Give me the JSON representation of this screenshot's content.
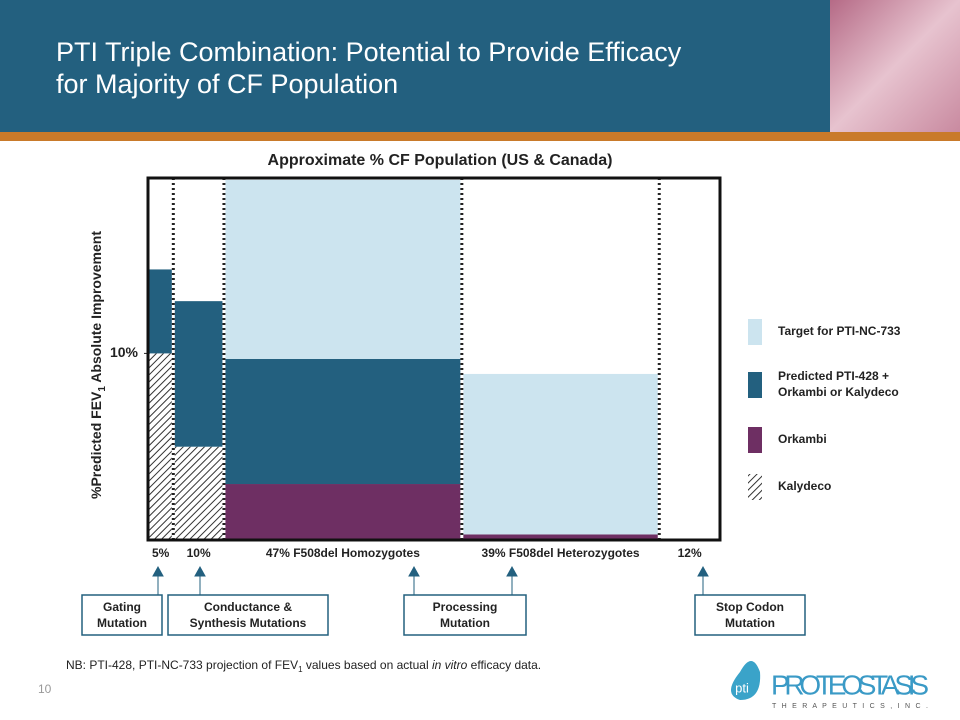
{
  "header": {
    "title_lines": [
      "PTI Triple Combination: Potential to Provide Efficacy",
      "for Majority of CF Population"
    ]
  },
  "chart_data": {
    "type": "marimekko",
    "title": "Approximate % CF Population (US & Canada)",
    "y_label": [
      "%Predicted  FEV",
      "1",
      " Absolute Improvement"
    ],
    "categories": [
      "5%",
      "10%",
      "47% F508del Homozygotes",
      "39% F508del Heterozygotes",
      "12%"
    ],
    "widths": [
      5,
      10,
      47,
      39,
      12
    ],
    "ylim": [
      0,
      19.4
    ],
    "yticks": [
      {
        "value": 10,
        "label": "10%"
      }
    ],
    "series": [
      {
        "name": "Kalydeco",
        "color": "hatch",
        "values": [
          10,
          5,
          null,
          null,
          null
        ]
      },
      {
        "name": "Orkambi",
        "color": "#6e2f63",
        "values": [
          null,
          null,
          3,
          0.3,
          null
        ]
      },
      {
        "name": "Predicted PTI-428 + Orkambi or Kalydeco",
        "color": "#23607f",
        "values": [
          4.5,
          7.8,
          6.7,
          null,
          null
        ]
      },
      {
        "name": "Target for PTI-NC-733",
        "color": "#cce4ef",
        "values": [
          null,
          null,
          9.6,
          8.6,
          null
        ]
      }
    ]
  },
  "annotations": [
    [
      "Gating",
      "Mutation"
    ],
    [
      "Conductance &",
      "Synthesis Mutations"
    ],
    [
      "Processing",
      "Mutation"
    ],
    [
      "Stop Codon",
      "Mutation"
    ]
  ],
  "footnote": [
    "NB: PTI-428, PTI-NC-733 projection of FEV",
    "1",
    " values based on actual ",
    "in vitro",
    " efficacy data."
  ],
  "page_number": "10",
  "logo": {
    "mark": "pti",
    "name": "PROTEOSTASIS",
    "tagline": "T H E R A P E U T I C S ,  I N C ."
  }
}
